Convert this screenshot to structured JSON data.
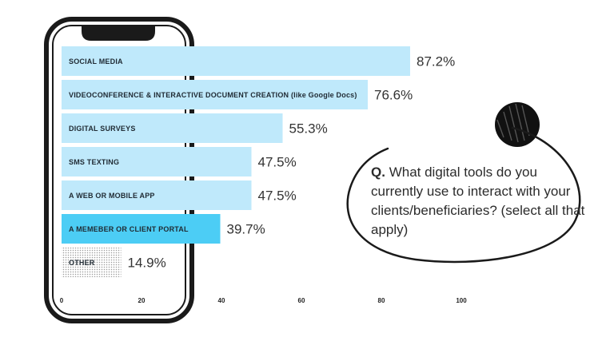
{
  "question": {
    "prefix": "Q.",
    "text": "What digital tools do you currently use to interact with your clients/beneficiaries? (select all that apply)"
  },
  "colors": {
    "bar_default": "#bfe9fb",
    "bar_highlight": "#4ccdf5",
    "bar_other_dots": "#9a9a9a",
    "phone_frame": "#1a1a1a",
    "accent_circle": "#111111"
  },
  "chart_data": {
    "type": "bar",
    "orientation": "horizontal",
    "xlim": [
      0,
      100
    ],
    "x_ticks": [
      "0",
      "20",
      "40",
      "60",
      "80",
      "100"
    ],
    "grid": false,
    "bars": [
      {
        "category": "SOCIAL MEDIA",
        "value": 87.2,
        "label": "87.2%",
        "style": "default"
      },
      {
        "category": "VIDEOCONFERENCE & INTERACTIVE DOCUMENT CREATION (like Google Docs)",
        "value": 76.6,
        "label": "76.6%",
        "style": "default"
      },
      {
        "category": "DIGITAL SURVEYS",
        "value": 55.3,
        "label": "55.3%",
        "style": "default"
      },
      {
        "category": "SMS TEXTING",
        "value": 47.5,
        "label": "47.5%",
        "style": "default"
      },
      {
        "category": "A WEB OR MOBILE APP",
        "value": 47.5,
        "label": "47.5%",
        "style": "default"
      },
      {
        "category": "A MEMEBER OR CLIENT PORTAL",
        "value": 39.7,
        "label": "39.7%",
        "style": "highlight"
      },
      {
        "category": "OTHER",
        "value": 14.9,
        "label": "14.9%",
        "style": "dotted"
      }
    ]
  }
}
